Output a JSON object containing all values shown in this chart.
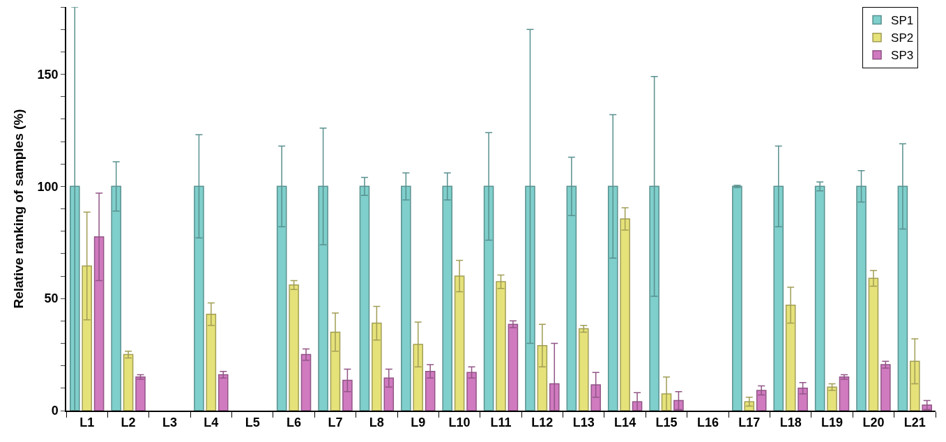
{
  "chart_data": {
    "type": "bar",
    "ylabel": "Relative ranking of samples (%)",
    "categories": [
      "L1",
      "L2",
      "L3",
      "L4",
      "L5",
      "L6",
      "L7",
      "L8",
      "L9",
      "L10",
      "L11",
      "L12",
      "L13",
      "L14",
      "L15",
      "L16",
      "L17",
      "L18",
      "L19",
      "L20",
      "L21"
    ],
    "series": [
      {
        "name": "SP1",
        "color": "#7fcfcc",
        "values": [
          100,
          100,
          null,
          100,
          null,
          100,
          100,
          100,
          100,
          100,
          100,
          100,
          100,
          100,
          100,
          null,
          100,
          100,
          100,
          100,
          100
        ],
        "errors": [
          [
            0,
            180
          ],
          11,
          null,
          23,
          null,
          18,
          26,
          4,
          6,
          6,
          24,
          70,
          13,
          32,
          49,
          null,
          0.5,
          18,
          2,
          7,
          19
        ]
      },
      {
        "name": "SP2",
        "color": "#e6e27a",
        "values": [
          64.5,
          25,
          null,
          43,
          null,
          56,
          35,
          39,
          29.5,
          60,
          57.5,
          29,
          36.5,
          85.5,
          7.5,
          null,
          4,
          47,
          10.5,
          59,
          22
        ],
        "errors": [
          24,
          1.5,
          null,
          5,
          null,
          2,
          8.5,
          7.5,
          10,
          7,
          3,
          9.5,
          1.5,
          5,
          7.5,
          null,
          2,
          8,
          1.5,
          3.5,
          10
        ]
      },
      {
        "name": "SP3",
        "color": "#d07ac0",
        "values": [
          77.5,
          15,
          null,
          16,
          null,
          25,
          13.5,
          14.5,
          17.5,
          17,
          38.5,
          12,
          11.5,
          4,
          4.5,
          null,
          9,
          10,
          15,
          20.5,
          2.5
        ],
        "errors": [
          19.5,
          1,
          null,
          1.5,
          null,
          2.5,
          5,
          4,
          3,
          2.5,
          1.5,
          [
            0,
            30
          ],
          5.5,
          4,
          4,
          null,
          2,
          2.5,
          1,
          1.5,
          2
        ]
      }
    ],
    "ylim": [
      0,
      180
    ],
    "yticks": [
      0,
      {
        "value": 10,
        "label": null
      },
      {
        "value": 20,
        "label": null
      },
      {
        "value": 30,
        "label": null
      },
      {
        "value": 40,
        "label": null
      },
      50,
      {
        "value": 60,
        "label": null
      },
      {
        "value": 70,
        "label": null
      },
      {
        "value": 80,
        "label": null
      },
      {
        "value": 90,
        "label": null
      },
      100,
      {
        "value": 110,
        "label": null
      },
      {
        "value": 120,
        "label": null
      },
      {
        "value": 130,
        "label": null
      },
      {
        "value": 140,
        "label": null
      },
      150,
      {
        "value": 160,
        "label": null
      },
      {
        "value": 170,
        "label": null
      },
      {
        "value": 180,
        "label": null
      }
    ],
    "legend": "top right"
  }
}
